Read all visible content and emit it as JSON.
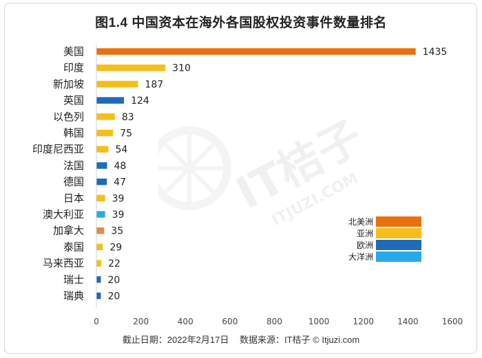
{
  "title": "图1.4  中国资本在海外各国股权投资事件数量排名",
  "footer": {
    "date": "截止日期：2022年2月17日",
    "source": "数据来源：IT桔子 © Itjuzi.com"
  },
  "watermark": {
    "brand": "IT桔子",
    "domain": "ITJUZI.COM"
  },
  "colors": {
    "north_america": "#E8700E",
    "asia": "#F5BE1B",
    "europe": "#1E6BB8",
    "oceania": "#27A9E6",
    "canada": "#DE8A4E"
  },
  "legend": [
    {
      "label": "北美洲",
      "color": "#E8700E"
    },
    {
      "label": "亚洲",
      "color": "#F5BE1B"
    },
    {
      "label": "欧洲",
      "color": "#1E6BB8"
    },
    {
      "label": "大洋洲",
      "color": "#27A9E6"
    }
  ],
  "chart_data": {
    "type": "bar",
    "orientation": "horizontal",
    "title": "图1.4  中国资本在海外各国股权投资事件数量排名",
    "xlim": [
      0,
      1600
    ],
    "xticks": [
      0,
      200,
      400,
      600,
      800,
      1000,
      1200,
      1400,
      1600
    ],
    "grid": false,
    "legend_position": "bottom-right",
    "categories": [
      "美国",
      "印度",
      "新加坡",
      "英国",
      "以色列",
      "韩国",
      "印度尼西亚",
      "法国",
      "德国",
      "日本",
      "澳大利亚",
      "加拿大",
      "泰国",
      "马来西亚",
      "瑞士",
      "瑞典"
    ],
    "values": [
      1435,
      310,
      187,
      124,
      83,
      75,
      54,
      48,
      47,
      39,
      39,
      35,
      29,
      22,
      20,
      20
    ],
    "bar_colors": [
      "#E8700E",
      "#F5BE1B",
      "#F5BE1B",
      "#1E6BB8",
      "#F5BE1B",
      "#F5BE1B",
      "#F5BE1B",
      "#1E6BB8",
      "#1E6BB8",
      "#F5BE1B",
      "#27A9E6",
      "#DE8A4E",
      "#F5BE1B",
      "#F5BE1B",
      "#1E6BB8",
      "#1E6BB8"
    ]
  }
}
